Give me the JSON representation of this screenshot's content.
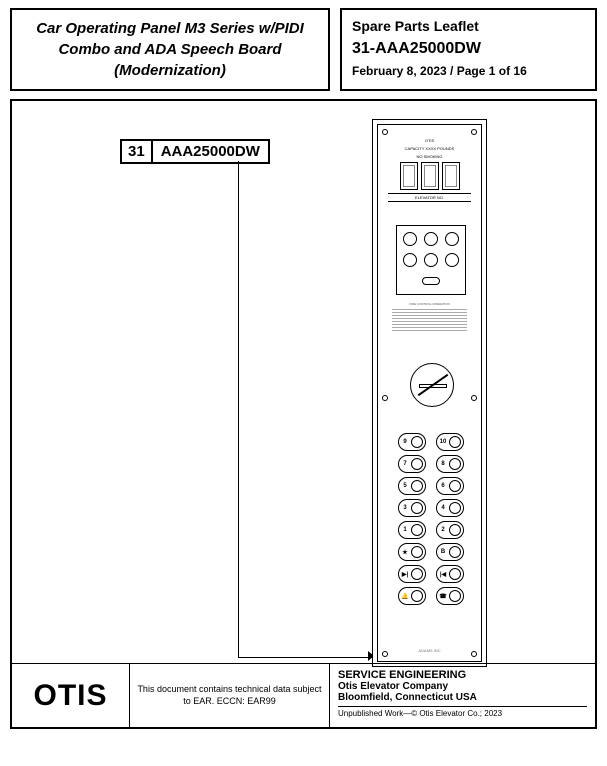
{
  "header": {
    "title_box": "Car Operating Panel M3 Series w/PIDI Combo and ADA Speech Board (Modernization)",
    "leaflet_label": "Spare Parts Leaflet",
    "leaflet_code": "31-AAA25000DW",
    "leaflet_date": "February 8, 2023 / Page 1 of 16"
  },
  "callout": {
    "num": "31",
    "code": "AAA25000DW"
  },
  "panel": {
    "header_line1": "OTIS",
    "header_line2": "CAPACITY  XXXX  POUNDS",
    "header_line3": "NO SMOKING",
    "elev_label": "ELEVATOR  NO.",
    "info_title": "FIRE CONTROL OPERATION",
    "floor_buttons_left": [
      "9",
      "7",
      "5",
      "3",
      "1",
      "★",
      "▶|",
      "🔔"
    ],
    "floor_buttons_right": [
      "10",
      "8",
      "6",
      "4",
      "2",
      "B",
      "|◀",
      "☎"
    ],
    "footer": "ADAMS INC"
  },
  "footer": {
    "logo": "OTIS",
    "ear_notice": "This document contains technical data subject to EAR.  ECCN: EAR99",
    "eng_title": "SERVICE ENGINEERING",
    "company": "Otis Elevator Company",
    "location": "Bloomfield, Connecticut USA",
    "copyright": "Unpublished Work—© Otis Elevator Co.; 2023"
  },
  "colors": {
    "border": "#000000",
    "bg": "#ffffff",
    "muted": "#777777"
  }
}
